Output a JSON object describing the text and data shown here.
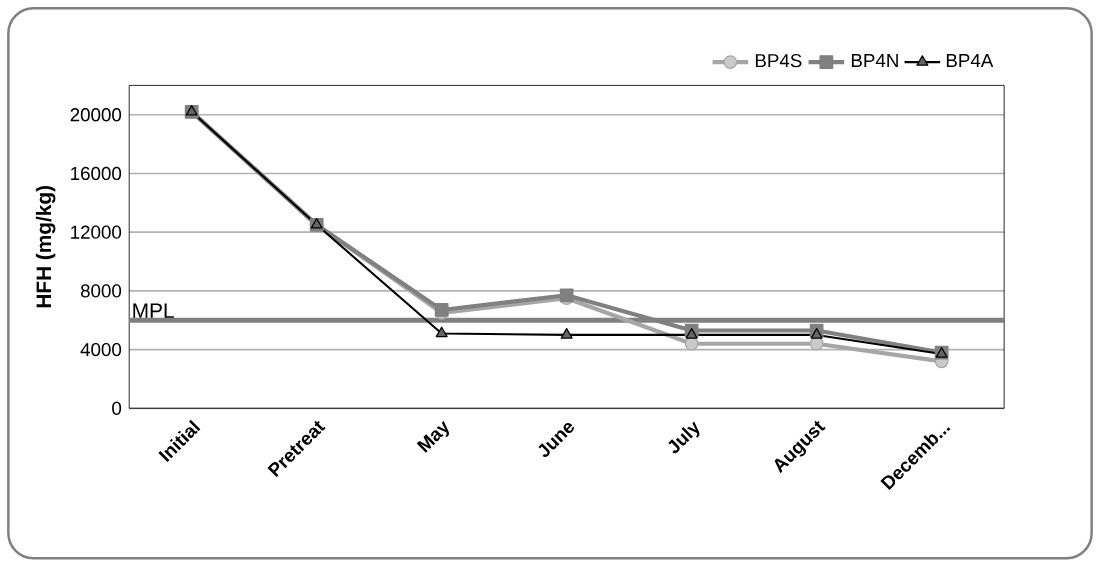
{
  "chart_data": {
    "type": "line",
    "ylabel": "HFH (mg/kg)",
    "categories": [
      "Initial",
      "Pretreat",
      "May",
      "June",
      "July",
      "August",
      "Decemb..."
    ],
    "series": [
      {
        "name": "BP4S",
        "color": "#a6a6a6",
        "marker": "circle",
        "values": [
          20200,
          12500,
          6500,
          7500,
          4400,
          4400,
          3200
        ]
      },
      {
        "name": "BP4N",
        "color": "#808080",
        "marker": "square",
        "values": [
          20200,
          12500,
          6700,
          7700,
          5300,
          5300,
          3800
        ]
      },
      {
        "name": "BP4A",
        "color": "#000000",
        "marker": "triangle",
        "values": [
          20200,
          12500,
          5100,
          5000,
          5000,
          5000,
          3700
        ]
      }
    ],
    "ylim": [
      0,
      22000
    ],
    "yticks": [
      0,
      4000,
      8000,
      12000,
      16000,
      20000
    ],
    "ref_lines": [
      {
        "axis": "y",
        "value": 6000,
        "label": "MPL",
        "color": "#808080"
      }
    ],
    "grid": "y",
    "legend": "top right"
  }
}
